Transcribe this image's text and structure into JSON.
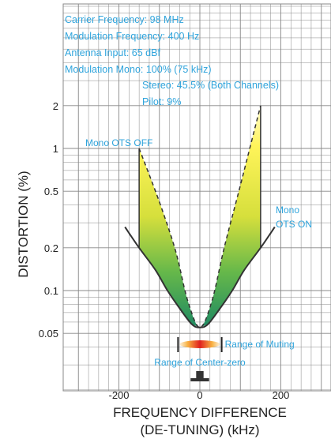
{
  "chart_data": {
    "type": "line",
    "title": "",
    "xlabel": "FREQUENCY DIFFERENCE",
    "xlabel_line2": "(DE-TUNING) (kHz)",
    "ylabel": "DISTORTION (%)",
    "x_scale": "linear",
    "y_scale": "log",
    "xlim": [
      -300,
      300
    ],
    "ylim": [
      0.03,
      10
    ],
    "x_ticks": [
      -200,
      0,
      200
    ],
    "x_tick_labels": [
      "-200",
      "0",
      "200"
    ],
    "y_ticks": [
      0.05,
      0.1,
      0.2,
      0.5,
      1,
      2
    ],
    "y_tick_labels": [
      "0.05",
      "0.1",
      "0.2",
      "0.5",
      "1",
      "2"
    ],
    "grid": true,
    "conditions": [
      "Carrier Frequency: 98 MHz",
      "Modulation Frequency: 400 Hz",
      "Antenna Input: 65 dBf",
      "Modulation  Mono:  100% (75 kHz)",
      "Stereo: 45.5% (Both Channels)",
      "Pilot:    9%"
    ],
    "series": [
      {
        "name": "Mono OTS OFF",
        "style": "dashed",
        "color": "#333333",
        "x": [
          -150,
          -100,
          -60,
          -30,
          0,
          30,
          60,
          100,
          150
        ],
        "y": [
          1.0,
          0.42,
          0.19,
          0.085,
          0.055,
          0.085,
          0.2,
          0.55,
          2.0
        ]
      },
      {
        "name": "Mono OTS ON",
        "style": "solid",
        "color": "#333333",
        "x": [
          -185,
          -150,
          -110,
          -80,
          -50,
          -20,
          0,
          20,
          50,
          80,
          110,
          150,
          185
        ],
        "y": [
          0.28,
          0.2,
          0.14,
          0.1,
          0.075,
          0.058,
          0.055,
          0.058,
          0.075,
          0.1,
          0.14,
          0.2,
          0.28
        ]
      }
    ],
    "annotations": {
      "muting_label": "Range of Muting",
      "muting_range": [
        -50,
        50
      ],
      "center_zero_label": "Range of Center-zero",
      "center_zero_range": [
        -15,
        15
      ]
    },
    "colors": {
      "text_accent": "#2fa4dc",
      "grid": "#888888",
      "fill_top": "#fff45a",
      "fill_bottom": "#1f8a62",
      "muting_center": "#e02020",
      "muting_edge": "#f8b040"
    }
  }
}
